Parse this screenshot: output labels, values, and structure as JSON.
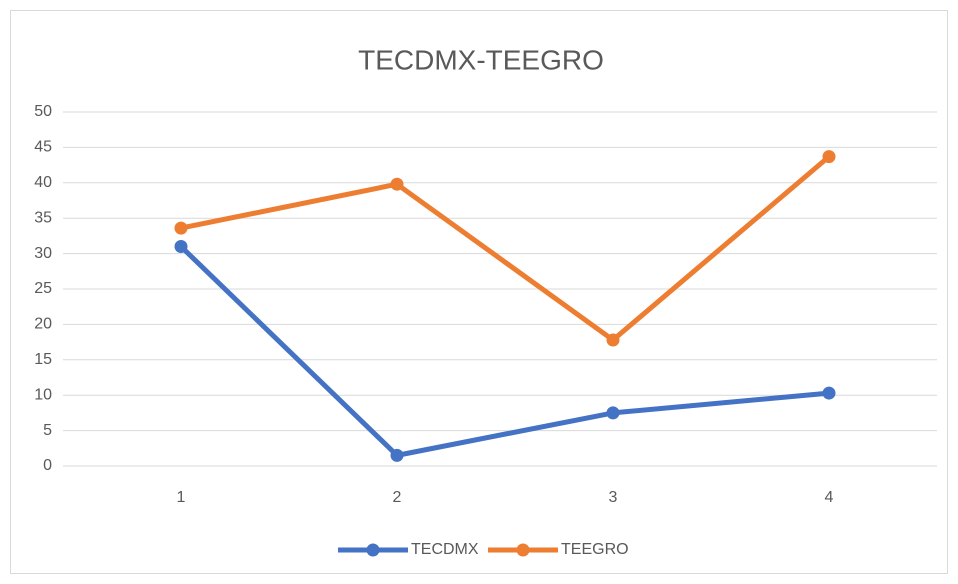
{
  "chart_data": {
    "type": "line",
    "title": "TECDMX-TEEGRO",
    "categories": [
      "1",
      "2",
      "3",
      "4"
    ],
    "series": [
      {
        "name": "TECDMX",
        "color": "#4472c4",
        "values": [
          31,
          1.5,
          7.5,
          10.3
        ]
      },
      {
        "name": "TEEGRO",
        "color": "#ed7d31",
        "values": [
          33.6,
          39.8,
          17.8,
          43.7
        ]
      }
    ],
    "ylim": [
      0,
      50
    ],
    "yticks": [
      0,
      5,
      10,
      15,
      20,
      25,
      30,
      35,
      40,
      45,
      50
    ],
    "grid": true,
    "legend": "bottom"
  }
}
